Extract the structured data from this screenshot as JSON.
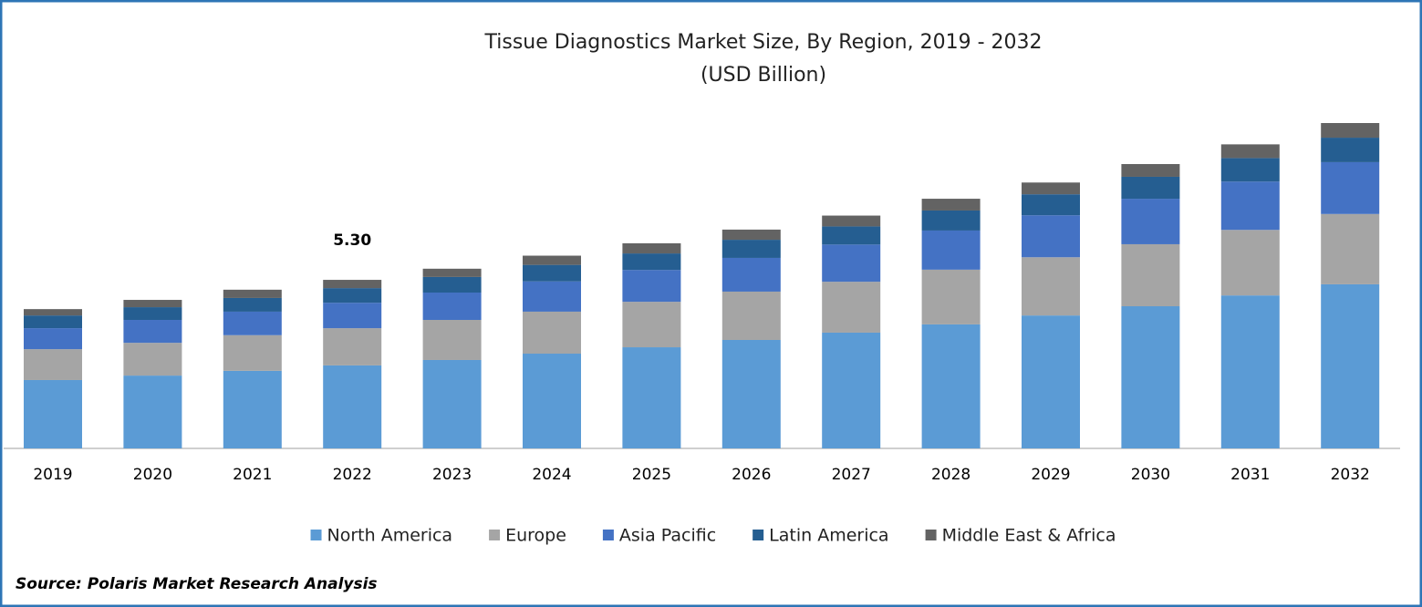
{
  "chart_data": {
    "type": "stacked_bar",
    "title": "Tissue Diagnostics Market Size, By Region, 2019 - 2032",
    "subtitle": "(USD Billion)",
    "annotation": "5.30",
    "source": "Source: Polaris Market Research Analysis",
    "categories": [
      "2019",
      "2020",
      "2021",
      "2022",
      "2023",
      "2024",
      "2025",
      "2026",
      "2027",
      "2028",
      "2029",
      "2030",
      "2031",
      "2032"
    ],
    "series": [
      {
        "name": "North America",
        "color": "#5b9bd5",
        "values": [
          2.15,
          2.29,
          2.44,
          2.61,
          2.78,
          2.98,
          3.18,
          3.41,
          3.64,
          3.9,
          4.18,
          4.47,
          4.81,
          5.16
        ]
      },
      {
        "name": "Europe",
        "color": "#a5a5a5",
        "values": [
          0.97,
          1.03,
          1.12,
          1.17,
          1.26,
          1.32,
          1.43,
          1.52,
          1.6,
          1.72,
          1.83,
          1.95,
          2.06,
          2.21
        ]
      },
      {
        "name": "Asia Pacific",
        "color": "#4472c4",
        "values": [
          0.66,
          0.72,
          0.74,
          0.8,
          0.86,
          0.95,
          1.0,
          1.06,
          1.17,
          1.23,
          1.32,
          1.43,
          1.52,
          1.63
        ]
      },
      {
        "name": "Latin America",
        "color": "#255e91",
        "values": [
          0.4,
          0.4,
          0.43,
          0.46,
          0.49,
          0.52,
          0.52,
          0.57,
          0.57,
          0.63,
          0.66,
          0.69,
          0.74,
          0.77
        ]
      },
      {
        "name": "Middle East & Africa",
        "color": "#636363",
        "values": [
          0.2,
          0.23,
          0.26,
          0.26,
          0.26,
          0.29,
          0.32,
          0.32,
          0.34,
          0.37,
          0.37,
          0.4,
          0.43,
          0.46
        ]
      }
    ]
  }
}
